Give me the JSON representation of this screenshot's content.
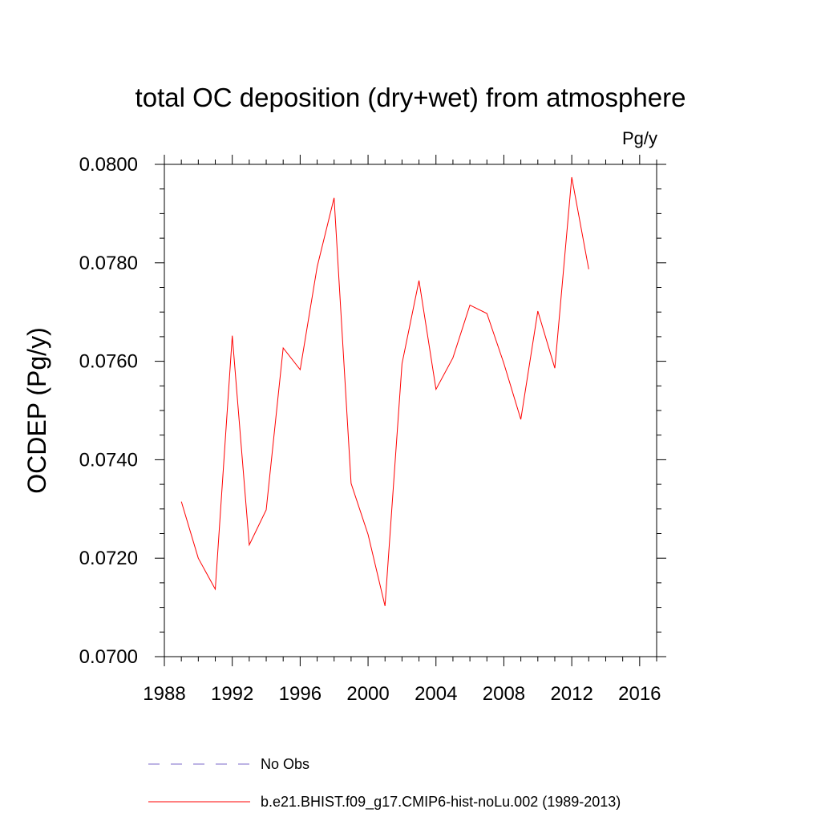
{
  "chart_data": {
    "type": "line",
    "title": "total OC deposition (dry+wet) from atmosphere",
    "units": "Pg/y",
    "ylabel": "OCDEP  (Pg/y)",
    "xlim": [
      1988,
      2017
    ],
    "ylim": [
      0.07,
      0.08
    ],
    "x_ticks": [
      1988,
      1992,
      1996,
      2000,
      2004,
      2008,
      2012,
      2016
    ],
    "x_tick_labels": [
      "1988",
      "1992",
      "1996",
      "2000",
      "2004",
      "2008",
      "2012",
      "2016"
    ],
    "y_ticks": [
      0.07,
      0.072,
      0.074,
      0.076,
      0.078,
      0.08
    ],
    "y_tick_labels": [
      "0.0700",
      "0.0720",
      "0.0740",
      "0.0760",
      "0.0780",
      "0.0800"
    ],
    "x": [
      1989,
      1990,
      1991,
      1992,
      1993,
      1994,
      1995,
      1996,
      1997,
      1998,
      1999,
      2000,
      2001,
      2002,
      2003,
      2004,
      2005,
      2006,
      2007,
      2008,
      2009,
      2010,
      2011,
      2012,
      2013
    ],
    "series": [
      {
        "name": "b.e21.BHIST.f09_g17.CMIP6-hist-noLu.002 (1989-2013)",
        "color": "#ff0000",
        "values": [
          0.07315,
          0.072,
          0.07137,
          0.07652,
          0.07227,
          0.07298,
          0.07627,
          0.07583,
          0.07792,
          0.07932,
          0.07352,
          0.07248,
          0.07103,
          0.07595,
          0.07764,
          0.07543,
          0.07607,
          0.07714,
          0.07697,
          0.07596,
          0.07482,
          0.07702,
          0.07586,
          0.07974,
          0.07787
        ]
      }
    ],
    "legend": [
      {
        "label": "No Obs",
        "color": "#7b68c8",
        "style": "dashed"
      },
      {
        "label": "b.e21.BHIST.f09_g17.CMIP6-hist-noLu.002 (1989-2013)",
        "color": "#ff0000",
        "style": "solid"
      }
    ],
    "legend_placement": "bottom"
  }
}
